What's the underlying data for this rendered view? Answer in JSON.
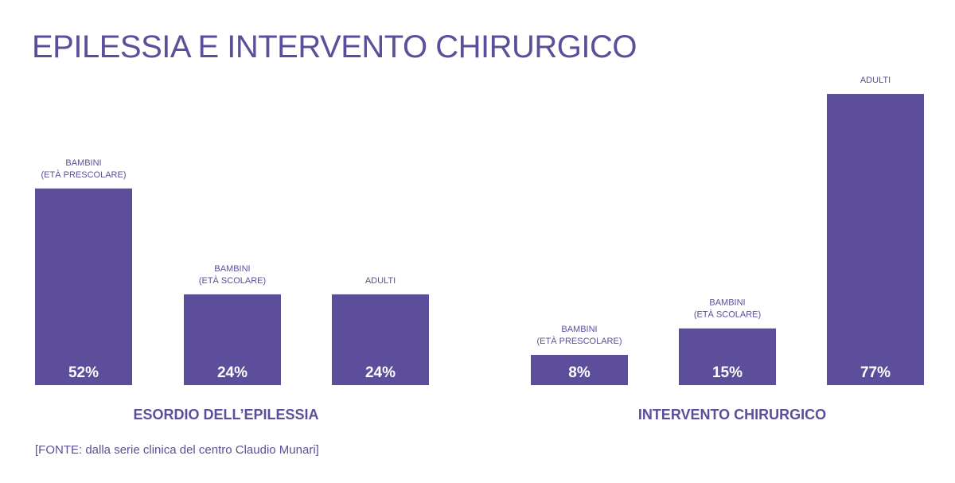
{
  "title": "EPILESSIA E INTERVENTO CHIRURGICO",
  "source": "[FONTE: dalla serie clinica del centro Claudio Munari]",
  "colors": {
    "accent": "#5c4e9a",
    "bar": "#5c4e9a",
    "value_text": "#ffffff"
  },
  "chart_data": [
    {
      "type": "bar",
      "title": "ESORDIO DELL’EPILESSIA",
      "categories": [
        [
          "BAMBINI",
          "(ETÀ PRESCOLARE)"
        ],
        [
          "BAMBINI",
          "(ETÀ SCOLARE)"
        ],
        [
          "ADULTI"
        ]
      ],
      "values": [
        52,
        24,
        24
      ],
      "labels": [
        "52%",
        "24%",
        "24%"
      ],
      "unit": "%",
      "ylim": [
        0,
        85
      ],
      "grid": false
    },
    {
      "type": "bar",
      "title": "INTERVENTO CHIRURGICO",
      "categories": [
        [
          "BAMBINI",
          "(ETÀ PRESCOLARE)"
        ],
        [
          "BAMBINI",
          "(ETÀ SCOLARE)"
        ],
        [
          "ADULTI"
        ]
      ],
      "values": [
        8,
        15,
        77
      ],
      "labels": [
        "8%",
        "15%",
        "77%"
      ],
      "unit": "%",
      "ylim": [
        0,
        85
      ],
      "grid": false
    }
  ]
}
